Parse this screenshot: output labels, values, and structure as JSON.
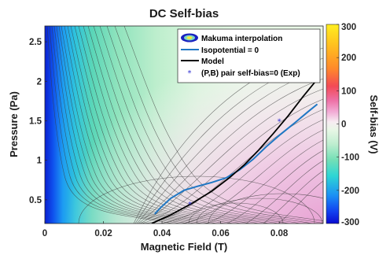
{
  "chart_data": {
    "type": "contour",
    "title": "DC Self-bias",
    "xlabel": "Magnetic Field (T)",
    "ylabel": "Pressure (Pa)",
    "colorbar_label": "Self-bias (V)",
    "xlim": [
      0,
      0.095
    ],
    "ylim": [
      0.2,
      2.7
    ],
    "clim": [
      -300,
      300
    ],
    "x_ticks": [
      0,
      0.02,
      0.04,
      0.06,
      0.08
    ],
    "x_tick_labels": [
      "0",
      "0.02",
      "0.04",
      "0.06",
      "0.08"
    ],
    "y_ticks": [
      0.5,
      1,
      1.5,
      2,
      2.5
    ],
    "y_tick_labels": [
      "0.5",
      "1",
      "1.5",
      "2",
      "2.5"
    ],
    "colorbar_ticks": [
      300,
      200,
      100,
      0,
      -100,
      -200,
      -300
    ],
    "colorbar_tick_labels": [
      "300",
      "200",
      "100",
      "0",
      "-100",
      "-200",
      "-300"
    ],
    "colormap": [
      "#0b0bd6",
      "#1468ff",
      "#24c8e8",
      "#55e0b8",
      "#bff0d2",
      "#f5faf4",
      "#f7dcea",
      "#f2a6d2",
      "#ee6aa0",
      "#f25a3c",
      "#ff9a1e",
      "#ffef20"
    ],
    "legend_position": "top-right",
    "legend": [
      {
        "label": "Makuma interpolation",
        "marker": "contour-patch"
      },
      {
        "label": "Isopotential = 0",
        "color": "#1f77c4"
      },
      {
        "label": "Model",
        "color": "#000000"
      },
      {
        "label": "(P,B) pair self-bias=0 (Exp)",
        "marker": "*",
        "color": "#2b2bd0"
      }
    ],
    "series": [
      {
        "name": "Isopotential = 0",
        "x": [
          0.0375,
          0.0395,
          0.043,
          0.0475,
          0.052,
          0.057,
          0.062,
          0.0665,
          0.071,
          0.0755,
          0.0805,
          0.0855,
          0.09,
          0.093
        ],
        "y": [
          0.32,
          0.4,
          0.52,
          0.62,
          0.67,
          0.72,
          0.78,
          0.88,
          1.01,
          1.17,
          1.33,
          1.48,
          1.62,
          1.71
        ]
      },
      {
        "name": "Model",
        "x": [
          0.0365,
          0.043,
          0.05,
          0.057,
          0.063,
          0.068,
          0.073,
          0.078,
          0.083,
          0.088,
          0.0935
        ],
        "y": [
          0.2,
          0.31,
          0.45,
          0.61,
          0.78,
          0.94,
          1.13,
          1.34,
          1.56,
          1.8,
          2.05
        ]
      },
      {
        "name": "(P,B) pair self-bias=0 (Exp)",
        "x": [
          0.0495,
          0.08
        ],
        "y": [
          0.46,
          1.51
        ]
      }
    ]
  }
}
